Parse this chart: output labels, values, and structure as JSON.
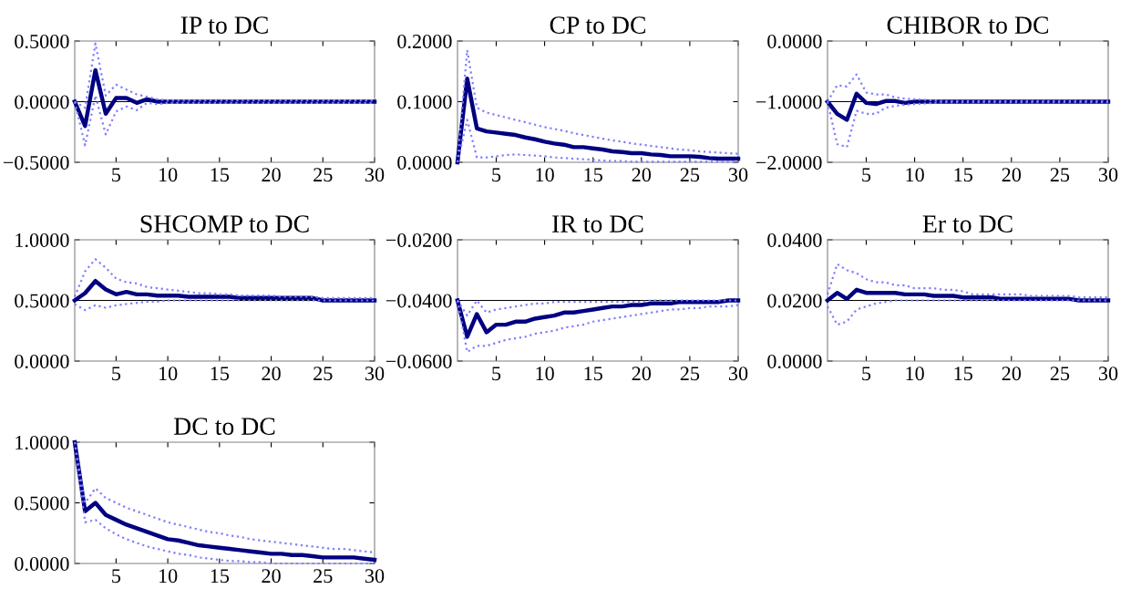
{
  "chart_data": [
    {
      "type": "line",
      "title": "IP to DC",
      "x": [
        1,
        2,
        3,
        4,
        5,
        6,
        7,
        8,
        9,
        10,
        11,
        12,
        13,
        14,
        15,
        16,
        17,
        18,
        19,
        20,
        21,
        22,
        23,
        24,
        25,
        26,
        27,
        28,
        29,
        30
      ],
      "xlim": [
        1,
        30
      ],
      "xticks": [
        5,
        10,
        15,
        20,
        25,
        30
      ],
      "ylim": [
        -0.5,
        0.5
      ],
      "yticks": [
        {
          "value": -0.5,
          "label": "−0.5000"
        },
        {
          "value": 0,
          "label": "0.0000"
        },
        {
          "value": 0.5,
          "label": "0.5000"
        }
      ],
      "grid": false,
      "ref_lines": [
        {
          "axis": "y",
          "value": 0,
          "color": "#000000"
        }
      ],
      "series": [
        {
          "line_style": "dotted",
          "color": "#7f7fff",
          "values": [
            0,
            -0.05,
            0.48,
            0.05,
            0.14,
            0.1,
            0.06,
            0.04,
            0.02,
            0.01,
            0.01,
            0.01,
            0.01,
            0.01,
            0.01,
            0.01,
            0.01,
            0.01,
            0.01,
            0.01,
            0.01,
            0.01,
            0.01,
            0.01,
            0.01,
            0.01,
            0.01,
            0.01,
            0.01,
            0.01
          ]
        },
        {
          "line_style": "dotted",
          "color": "#7f7fff",
          "values": [
            0,
            -0.36,
            0.05,
            -0.27,
            -0.08,
            -0.04,
            -0.07,
            -0.01,
            -0.02,
            -0.01,
            -0.01,
            -0.01,
            -0.01,
            -0.01,
            -0.01,
            -0.01,
            -0.01,
            -0.01,
            -0.01,
            -0.01,
            -0.01,
            -0.01,
            -0.01,
            -0.01,
            -0.01,
            -0.01,
            -0.01,
            -0.01,
            -0.01,
            -0.01
          ]
        },
        {
          "line_style": "solid",
          "color": "#000080",
          "values": [
            0,
            -0.2,
            0.26,
            -0.1,
            0.03,
            0.03,
            -0.01,
            0.02,
            0.0,
            0.0,
            0.0,
            0.0,
            0.0,
            0.0,
            0.0,
            0.0,
            0.0,
            0.0,
            0.0,
            0.0,
            0.0,
            0.0,
            0.0,
            0.0,
            0.0,
            0.0,
            0.0,
            0.0,
            0.0,
            0.0
          ]
        }
      ]
    },
    {
      "type": "line",
      "title": "CP to DC",
      "x": [
        1,
        2,
        3,
        4,
        5,
        6,
        7,
        8,
        9,
        10,
        11,
        12,
        13,
        14,
        15,
        16,
        17,
        18,
        19,
        20,
        21,
        22,
        23,
        24,
        25,
        26,
        27,
        28,
        29,
        30
      ],
      "xlim": [
        1,
        30
      ],
      "xticks": [
        5,
        10,
        15,
        20,
        25,
        30
      ],
      "ylim": [
        0,
        0.2
      ],
      "yticks": [
        {
          "value": 0,
          "label": "0.0000"
        },
        {
          "value": 0.1,
          "label": "0.1000"
        },
        {
          "value": 0.2,
          "label": "0.2000"
        }
      ],
      "grid": false,
      "series": [
        {
          "line_style": "dotted",
          "color": "#7f7fff",
          "values": [
            0,
            0.185,
            0.09,
            0.082,
            0.078,
            0.074,
            0.07,
            0.066,
            0.062,
            0.058,
            0.055,
            0.052,
            0.048,
            0.045,
            0.042,
            0.039,
            0.036,
            0.034,
            0.031,
            0.029,
            0.027,
            0.025,
            0.023,
            0.021,
            0.02,
            0.018,
            0.017,
            0.016,
            0.015,
            0.014
          ]
        },
        {
          "line_style": "dotted",
          "color": "#7f7fff",
          "values": [
            0,
            0.07,
            0.008,
            0.008,
            0.01,
            0.012,
            0.013,
            0.012,
            0.011,
            0.01,
            0.008,
            0.007,
            0.006,
            0.005,
            0.004,
            0.003,
            0.002,
            0.002,
            0.001,
            0.001,
            0.001,
            0.001,
            0.001,
            0.001,
            0.001,
            0.001,
            0.001,
            0.001,
            0.001,
            0.001
          ]
        },
        {
          "line_style": "solid",
          "color": "#000080",
          "values": [
            0,
            0.138,
            0.056,
            0.051,
            0.049,
            0.047,
            0.045,
            0.041,
            0.038,
            0.034,
            0.031,
            0.029,
            0.025,
            0.025,
            0.023,
            0.021,
            0.018,
            0.017,
            0.015,
            0.015,
            0.013,
            0.012,
            0.01,
            0.01,
            0.01,
            0.009,
            0.007,
            0.006,
            0.006,
            0.006
          ]
        }
      ]
    },
    {
      "type": "line",
      "title": "CHIBOR to DC",
      "x": [
        1,
        2,
        3,
        4,
        5,
        6,
        7,
        8,
        9,
        10,
        11,
        12,
        13,
        14,
        15,
        16,
        17,
        18,
        19,
        20,
        21,
        22,
        23,
        24,
        25,
        26,
        27,
        28,
        29,
        30
      ],
      "xlim": [
        1,
        30
      ],
      "xticks": [
        5,
        10,
        15,
        20,
        25,
        30
      ],
      "ylim": [
        -2,
        0
      ],
      "yticks": [
        {
          "value": -2,
          "label": "−2.0000"
        },
        {
          "value": -1,
          "label": "−1.0000"
        },
        {
          "value": 0,
          "label": "0.0000"
        }
      ],
      "grid": false,
      "ref_lines": [
        {
          "axis": "y",
          "value": -1,
          "color": "#000000"
        }
      ],
      "series": [
        {
          "line_style": "dotted",
          "color": "#7f7fff",
          "values": [
            -1.0,
            -0.73,
            -0.75,
            -0.55,
            -0.85,
            -0.88,
            -0.88,
            -0.93,
            -0.95,
            -0.96,
            -0.97,
            -0.98,
            -0.99,
            -0.99,
            -0.99,
            -0.99,
            -0.99,
            -0.99,
            -0.99,
            -0.99,
            -0.99,
            -0.99,
            -0.99,
            -0.99,
            -0.99,
            -0.99,
            -0.99,
            -0.99,
            -0.99,
            -0.99
          ]
        },
        {
          "line_style": "dotted",
          "color": "#7f7fff",
          "values": [
            -1.0,
            -1.7,
            -1.75,
            -1.15,
            -1.2,
            -1.2,
            -1.1,
            -1.07,
            -1.05,
            -1.04,
            -1.03,
            -1.02,
            -1.01,
            -1.01,
            -1.01,
            -1.01,
            -1.01,
            -1.01,
            -1.01,
            -1.01,
            -1.01,
            -1.01,
            -1.01,
            -1.01,
            -1.01,
            -1.01,
            -1.01,
            -1.01,
            -1.01,
            -1.01
          ]
        },
        {
          "line_style": "solid",
          "color": "#000080",
          "values": [
            -1.0,
            -1.2,
            -1.3,
            -0.87,
            -1.02,
            -1.04,
            -0.99,
            -0.99,
            -1.02,
            -1.0,
            -1.0,
            -1.0,
            -1.0,
            -1.0,
            -1.0,
            -1.0,
            -1.0,
            -1.0,
            -1.0,
            -1.0,
            -1.0,
            -1.0,
            -1.0,
            -1.0,
            -1.0,
            -1.0,
            -1.0,
            -1.0,
            -1.0,
            -1.0
          ]
        }
      ]
    },
    {
      "type": "line",
      "title": "SHCOMP to DC",
      "x": [
        1,
        2,
        3,
        4,
        5,
        6,
        7,
        8,
        9,
        10,
        11,
        12,
        13,
        14,
        15,
        16,
        17,
        18,
        19,
        20,
        21,
        22,
        23,
        24,
        25,
        26,
        27,
        28,
        29,
        30
      ],
      "xlim": [
        1,
        30
      ],
      "xticks": [
        5,
        10,
        15,
        20,
        25,
        30
      ],
      "ylim": [
        0,
        1
      ],
      "yticks": [
        {
          "value": 0,
          "label": "0.0000"
        },
        {
          "value": 0.5,
          "label": "0.5000"
        },
        {
          "value": 1,
          "label": "1.0000"
        }
      ],
      "grid": false,
      "ref_lines": [
        {
          "axis": "y",
          "value": 0.5,
          "color": "#000000"
        }
      ],
      "series": [
        {
          "line_style": "dotted",
          "color": "#7f7fff",
          "values": [
            0.53,
            0.74,
            0.84,
            0.77,
            0.68,
            0.65,
            0.64,
            0.61,
            0.6,
            0.59,
            0.58,
            0.57,
            0.56,
            0.56,
            0.55,
            0.55,
            0.54,
            0.54,
            0.54,
            0.54,
            0.53,
            0.53,
            0.53,
            0.53,
            0.52,
            0.52,
            0.52,
            0.52,
            0.52,
            0.52
          ]
        },
        {
          "line_style": "dotted",
          "color": "#7f7fff",
          "values": [
            0.47,
            0.42,
            0.46,
            0.44,
            0.46,
            0.47,
            0.48,
            0.49,
            0.49,
            0.5,
            0.5,
            0.5,
            0.5,
            0.5,
            0.5,
            0.5,
            0.5,
            0.5,
            0.5,
            0.5,
            0.5,
            0.5,
            0.5,
            0.5,
            0.5,
            0.5,
            0.5,
            0.5,
            0.5,
            0.5
          ]
        },
        {
          "line_style": "solid",
          "color": "#000080",
          "values": [
            0.5,
            0.56,
            0.66,
            0.59,
            0.55,
            0.57,
            0.55,
            0.55,
            0.54,
            0.54,
            0.54,
            0.53,
            0.53,
            0.53,
            0.53,
            0.53,
            0.52,
            0.52,
            0.52,
            0.52,
            0.52,
            0.52,
            0.52,
            0.52,
            0.5,
            0.5,
            0.5,
            0.5,
            0.5,
            0.5
          ]
        }
      ]
    },
    {
      "type": "line",
      "title": "IR to DC",
      "x": [
        1,
        2,
        3,
        4,
        5,
        6,
        7,
        8,
        9,
        10,
        11,
        12,
        13,
        14,
        15,
        16,
        17,
        18,
        19,
        20,
        21,
        22,
        23,
        24,
        25,
        26,
        27,
        28,
        29,
        30
      ],
      "xlim": [
        1,
        30
      ],
      "xticks": [
        5,
        10,
        15,
        20,
        25,
        30
      ],
      "ylim": [
        -0.06,
        -0.02
      ],
      "yticks": [
        {
          "value": -0.06,
          "label": "−0.0600"
        },
        {
          "value": -0.04,
          "label": "−0.0400"
        },
        {
          "value": -0.02,
          "label": "−0.0200"
        }
      ],
      "grid": false,
      "ref_lines": [
        {
          "axis": "y",
          "value": -0.04,
          "color": "#000000"
        }
      ],
      "series": [
        {
          "line_style": "dotted",
          "color": "#7f7fff",
          "values": [
            -0.04,
            -0.045,
            -0.04,
            -0.044,
            -0.043,
            -0.0425,
            -0.042,
            -0.0415,
            -0.041,
            -0.041,
            -0.0405,
            -0.0405,
            -0.0405,
            -0.0405,
            -0.0405,
            -0.0405,
            -0.0405,
            -0.0405,
            -0.0405,
            -0.0405,
            -0.04,
            -0.04,
            -0.04,
            -0.04,
            -0.04,
            -0.04,
            -0.04,
            -0.04,
            -0.04,
            -0.04
          ]
        },
        {
          "line_style": "dotted",
          "color": "#7f7fff",
          "values": [
            -0.04,
            -0.057,
            -0.055,
            -0.055,
            -0.054,
            -0.053,
            -0.0525,
            -0.052,
            -0.051,
            -0.0505,
            -0.05,
            -0.049,
            -0.0485,
            -0.048,
            -0.047,
            -0.0465,
            -0.046,
            -0.0455,
            -0.045,
            -0.0445,
            -0.044,
            -0.0435,
            -0.043,
            -0.043,
            -0.0425,
            -0.0425,
            -0.042,
            -0.042,
            -0.042,
            -0.0415
          ]
        },
        {
          "line_style": "solid",
          "color": "#000080",
          "values": [
            -0.04,
            -0.052,
            -0.0445,
            -0.0505,
            -0.048,
            -0.048,
            -0.047,
            -0.047,
            -0.046,
            -0.0455,
            -0.045,
            -0.044,
            -0.044,
            -0.0435,
            -0.043,
            -0.0425,
            -0.042,
            -0.042,
            -0.0415,
            -0.0415,
            -0.041,
            -0.041,
            -0.041,
            -0.0405,
            -0.0405,
            -0.0405,
            -0.0405,
            -0.0405,
            -0.04,
            -0.04
          ]
        }
      ]
    },
    {
      "type": "line",
      "title": "Er to DC",
      "x": [
        1,
        2,
        3,
        4,
        5,
        6,
        7,
        8,
        9,
        10,
        11,
        12,
        13,
        14,
        15,
        16,
        17,
        18,
        19,
        20,
        21,
        22,
        23,
        24,
        25,
        26,
        27,
        28,
        29,
        30
      ],
      "xlim": [
        1,
        30
      ],
      "xticks": [
        5,
        10,
        15,
        20,
        25,
        30
      ],
      "ylim": [
        0,
        0.04
      ],
      "yticks": [
        {
          "value": 0,
          "label": "0.0000"
        },
        {
          "value": 0.02,
          "label": "0.0200"
        },
        {
          "value": 0.04,
          "label": "0.0400"
        }
      ],
      "grid": false,
      "ref_lines": [
        {
          "axis": "y",
          "value": 0.02,
          "color": "#000000"
        }
      ],
      "series": [
        {
          "line_style": "dotted",
          "color": "#7f7fff",
          "values": [
            0.022,
            0.032,
            0.03,
            0.029,
            0.027,
            0.026,
            0.026,
            0.025,
            0.025,
            0.024,
            0.024,
            0.024,
            0.0235,
            0.0235,
            0.023,
            0.022,
            0.022,
            0.022,
            0.022,
            0.022,
            0.022,
            0.0215,
            0.0215,
            0.0215,
            0.0215,
            0.0215,
            0.021,
            0.021,
            0.021,
            0.021
          ]
        },
        {
          "line_style": "dotted",
          "color": "#7f7fff",
          "values": [
            0.018,
            0.012,
            0.013,
            0.017,
            0.018,
            0.019,
            0.0195,
            0.02,
            0.02,
            0.02,
            0.02,
            0.02,
            0.02,
            0.02,
            0.02,
            0.02,
            0.02,
            0.02,
            0.02,
            0.02,
            0.02,
            0.02,
            0.02,
            0.02,
            0.02,
            0.02,
            0.02,
            0.02,
            0.02,
            0.02
          ]
        },
        {
          "line_style": "solid",
          "color": "#000080",
          "values": [
            0.02,
            0.0225,
            0.0205,
            0.0235,
            0.0225,
            0.0225,
            0.0225,
            0.0225,
            0.022,
            0.022,
            0.022,
            0.0215,
            0.0215,
            0.0215,
            0.021,
            0.021,
            0.021,
            0.021,
            0.0205,
            0.0205,
            0.0205,
            0.0205,
            0.0205,
            0.0205,
            0.0205,
            0.0205,
            0.02,
            0.02,
            0.02,
            0.02
          ]
        }
      ]
    },
    {
      "type": "line",
      "title": "DC to DC",
      "x": [
        1,
        2,
        3,
        4,
        5,
        6,
        7,
        8,
        9,
        10,
        11,
        12,
        13,
        14,
        15,
        16,
        17,
        18,
        19,
        20,
        21,
        22,
        23,
        24,
        25,
        26,
        27,
        28,
        29,
        30
      ],
      "xlim": [
        1,
        30
      ],
      "xticks": [
        5,
        10,
        15,
        20,
        25,
        30
      ],
      "ylim": [
        0,
        1
      ],
      "yticks": [
        {
          "value": 0,
          "label": "0.0000"
        },
        {
          "value": 0.5,
          "label": "0.5000"
        },
        {
          "value": 1,
          "label": "1.0000"
        }
      ],
      "grid": false,
      "series": [
        {
          "line_style": "dotted",
          "color": "#7f7fff",
          "values": [
            1.0,
            0.5,
            0.62,
            0.54,
            0.5,
            0.46,
            0.43,
            0.4,
            0.37,
            0.34,
            0.32,
            0.3,
            0.28,
            0.26,
            0.25,
            0.23,
            0.22,
            0.2,
            0.19,
            0.18,
            0.17,
            0.16,
            0.15,
            0.14,
            0.13,
            0.12,
            0.12,
            0.11,
            0.1,
            0.09
          ]
        },
        {
          "line_style": "dotted",
          "color": "#7f7fff",
          "values": [
            1.0,
            0.34,
            0.36,
            0.29,
            0.24,
            0.2,
            0.17,
            0.14,
            0.12,
            0.1,
            0.08,
            0.07,
            0.05,
            0.04,
            0.03,
            0.02,
            0.02,
            0.01,
            0.01,
            0.0,
            0.0,
            0.0,
            0.0,
            0.0,
            0.0,
            0.0,
            0.0,
            0.0,
            0.0,
            0.0
          ]
        },
        {
          "line_style": "solid",
          "color": "#000080",
          "values": [
            1.0,
            0.43,
            0.5,
            0.4,
            0.36,
            0.32,
            0.29,
            0.26,
            0.23,
            0.2,
            0.19,
            0.17,
            0.15,
            0.14,
            0.13,
            0.12,
            0.11,
            0.1,
            0.09,
            0.08,
            0.08,
            0.07,
            0.07,
            0.06,
            0.05,
            0.05,
            0.05,
            0.05,
            0.04,
            0.03
          ]
        }
      ]
    }
  ]
}
